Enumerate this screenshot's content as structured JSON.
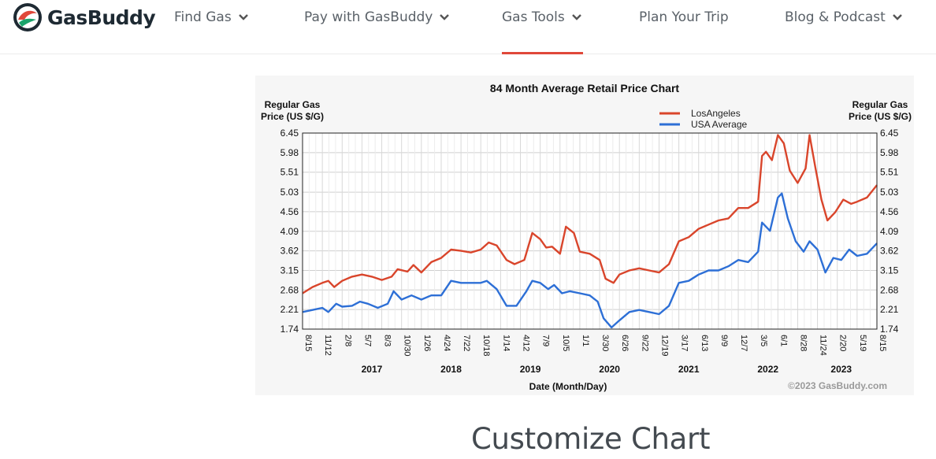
{
  "brand": {
    "name": "GasBuddy"
  },
  "nav": {
    "items": [
      {
        "label": "Find Gas",
        "dropdown": true
      },
      {
        "label": "Pay with GasBuddy",
        "dropdown": true
      },
      {
        "label": "Gas Tools",
        "dropdown": true,
        "active": true
      },
      {
        "label": "Plan Your Trip",
        "dropdown": false
      },
      {
        "label": "Blog & Podcast",
        "dropdown": true
      }
    ],
    "active_color": "#e0483a"
  },
  "chart_data": {
    "type": "line",
    "title": "84 Month Average Retail Price Chart",
    "ylabel_left": "Regular Gas Price (US $/G)",
    "ylabel_right": "Regular Gas Price (US $/G)",
    "xlabel": "Date (Month/Day)",
    "copyright": "©2023 GasBuddy.com",
    "ylim": [
      1.74,
      6.45
    ],
    "yticks": [
      "6.45",
      "5.98",
      "5.51",
      "5.03",
      "4.56",
      "4.09",
      "3.62",
      "3.15",
      "2.68",
      "2.21",
      "1.74"
    ],
    "xticks": [
      "8/15",
      "11/12",
      "2/8",
      "5/7",
      "8/3",
      "10/30",
      "1/26",
      "4/24",
      "7/22",
      "10/18",
      "1/14",
      "4/12",
      "7/9",
      "10/5",
      "1/1",
      "3/30",
      "6/26",
      "9/22",
      "12/19",
      "3/17",
      "6/13",
      "9/9",
      "12/7",
      "3/5",
      "6/1",
      "8/28",
      "11/24",
      "2/20",
      "5/19",
      "8/15"
    ],
    "years": [
      {
        "label": "2017",
        "at_tick": 3.5
      },
      {
        "label": "2018",
        "at_tick": 7.5
      },
      {
        "label": "2019",
        "at_tick": 11.5
      },
      {
        "label": "2020",
        "at_tick": 15.5
      },
      {
        "label": "2021",
        "at_tick": 19.5
      },
      {
        "label": "2022",
        "at_tick": 23.5
      },
      {
        "label": "2023",
        "at_tick": 27.2
      }
    ],
    "grid": true,
    "legend_position": "top-right",
    "series": [
      {
        "name": "LosAngeles",
        "color": "#d9452b",
        "points": [
          [
            0,
            2.6
          ],
          [
            0.5,
            2.75
          ],
          [
            1,
            2.85
          ],
          [
            1.3,
            2.9
          ],
          [
            1.6,
            2.75
          ],
          [
            2,
            2.9
          ],
          [
            2.5,
            3.0
          ],
          [
            3,
            3.05
          ],
          [
            3.5,
            3.0
          ],
          [
            4,
            2.92
          ],
          [
            4.5,
            3.0
          ],
          [
            4.8,
            3.18
          ],
          [
            5.3,
            3.12
          ],
          [
            5.6,
            3.28
          ],
          [
            6,
            3.1
          ],
          [
            6.5,
            3.35
          ],
          [
            7,
            3.45
          ],
          [
            7.5,
            3.65
          ],
          [
            8,
            3.62
          ],
          [
            8.5,
            3.58
          ],
          [
            9,
            3.65
          ],
          [
            9.4,
            3.82
          ],
          [
            9.8,
            3.75
          ],
          [
            10.3,
            3.4
          ],
          [
            10.7,
            3.3
          ],
          [
            11.2,
            3.4
          ],
          [
            11.6,
            4.05
          ],
          [
            12,
            3.9
          ],
          [
            12.3,
            3.7
          ],
          [
            12.6,
            3.72
          ],
          [
            13,
            3.55
          ],
          [
            13.3,
            4.2
          ],
          [
            13.7,
            4.05
          ],
          [
            14,
            3.6
          ],
          [
            14.5,
            3.55
          ],
          [
            15,
            3.4
          ],
          [
            15.3,
            2.95
          ],
          [
            15.7,
            2.85
          ],
          [
            16,
            3.05
          ],
          [
            16.5,
            3.15
          ],
          [
            17,
            3.2
          ],
          [
            17.5,
            3.15
          ],
          [
            18,
            3.1
          ],
          [
            18.5,
            3.3
          ],
          [
            19,
            3.85
          ],
          [
            19.5,
            3.95
          ],
          [
            20,
            4.15
          ],
          [
            20.5,
            4.25
          ],
          [
            21,
            4.35
          ],
          [
            21.5,
            4.4
          ],
          [
            22,
            4.65
          ],
          [
            22.5,
            4.65
          ],
          [
            23,
            4.8
          ],
          [
            23.2,
            5.9
          ],
          [
            23.4,
            6.0
          ],
          [
            23.7,
            5.8
          ],
          [
            24,
            6.4
          ],
          [
            24.3,
            6.2
          ],
          [
            24.6,
            5.55
          ],
          [
            25,
            5.25
          ],
          [
            25.4,
            5.6
          ],
          [
            25.6,
            6.4
          ],
          [
            25.9,
            5.6
          ],
          [
            26.2,
            4.85
          ],
          [
            26.5,
            4.35
          ],
          [
            26.9,
            4.55
          ],
          [
            27.3,
            4.85
          ],
          [
            27.7,
            4.75
          ],
          [
            28,
            4.8
          ],
          [
            28.5,
            4.9
          ],
          [
            29,
            5.2
          ]
        ]
      },
      {
        "name": "USA Average",
        "color": "#2d6fd6",
        "points": [
          [
            0,
            2.15
          ],
          [
            0.5,
            2.2
          ],
          [
            1,
            2.25
          ],
          [
            1.3,
            2.15
          ],
          [
            1.7,
            2.35
          ],
          [
            2,
            2.28
          ],
          [
            2.5,
            2.3
          ],
          [
            2.9,
            2.4
          ],
          [
            3.3,
            2.35
          ],
          [
            3.8,
            2.25
          ],
          [
            4.3,
            2.35
          ],
          [
            4.6,
            2.65
          ],
          [
            5,
            2.45
          ],
          [
            5.5,
            2.55
          ],
          [
            6,
            2.45
          ],
          [
            6.5,
            2.55
          ],
          [
            7,
            2.55
          ],
          [
            7.5,
            2.9
          ],
          [
            8,
            2.85
          ],
          [
            8.5,
            2.85
          ],
          [
            9,
            2.85
          ],
          [
            9.3,
            2.9
          ],
          [
            9.8,
            2.7
          ],
          [
            10.3,
            2.3
          ],
          [
            10.8,
            2.3
          ],
          [
            11.3,
            2.65
          ],
          [
            11.6,
            2.9
          ],
          [
            12,
            2.85
          ],
          [
            12.4,
            2.7
          ],
          [
            12.7,
            2.8
          ],
          [
            13.1,
            2.6
          ],
          [
            13.5,
            2.65
          ],
          [
            14,
            2.6
          ],
          [
            14.5,
            2.55
          ],
          [
            14.9,
            2.4
          ],
          [
            15.2,
            2.0
          ],
          [
            15.6,
            1.78
          ],
          [
            16,
            1.95
          ],
          [
            16.5,
            2.15
          ],
          [
            17,
            2.2
          ],
          [
            17.5,
            2.15
          ],
          [
            18,
            2.1
          ],
          [
            18.5,
            2.3
          ],
          [
            19,
            2.85
          ],
          [
            19.5,
            2.9
          ],
          [
            20,
            3.05
          ],
          [
            20.5,
            3.15
          ],
          [
            21,
            3.15
          ],
          [
            21.5,
            3.25
          ],
          [
            22,
            3.4
          ],
          [
            22.5,
            3.35
          ],
          [
            23,
            3.6
          ],
          [
            23.2,
            4.3
          ],
          [
            23.6,
            4.1
          ],
          [
            24,
            4.9
          ],
          [
            24.2,
            5.0
          ],
          [
            24.5,
            4.4
          ],
          [
            24.9,
            3.85
          ],
          [
            25.3,
            3.6
          ],
          [
            25.6,
            3.85
          ],
          [
            26,
            3.65
          ],
          [
            26.4,
            3.1
          ],
          [
            26.8,
            3.45
          ],
          [
            27.2,
            3.4
          ],
          [
            27.6,
            3.65
          ],
          [
            28,
            3.5
          ],
          [
            28.5,
            3.55
          ],
          [
            29,
            3.8
          ]
        ]
      }
    ]
  },
  "section": {
    "heading": "Customize Chart"
  }
}
